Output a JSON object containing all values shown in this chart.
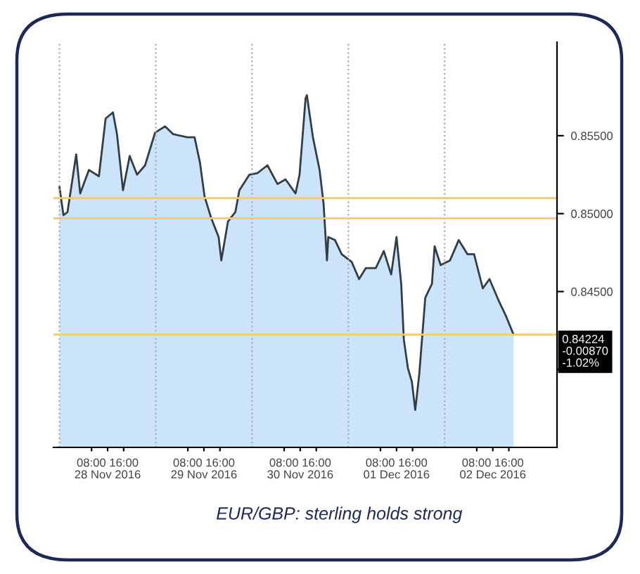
{
  "chart_data": {
    "type": "area",
    "x": [
      "2016-11-28T00:00",
      "2016-11-28T01:00",
      "2016-11-28T02:00",
      "2016-11-28T04:10",
      "2016-11-28T05:10",
      "2016-11-28T07:20",
      "2016-11-28T09:50",
      "2016-11-28T11:30",
      "2016-11-28T13:20",
      "2016-11-28T14:20",
      "2016-11-28T15:50",
      "2016-11-28T17:30",
      "2016-11-28T19:20",
      "2016-11-28T21:20",
      "2016-11-28T23:50",
      "2016-11-29T02:20",
      "2016-11-29T04:20",
      "2016-11-29T07:50",
      "2016-11-29T09:40",
      "2016-11-29T11:00",
      "2016-11-29T12:10",
      "2016-11-29T13:50",
      "2016-11-29T15:40",
      "2016-11-29T16:20",
      "2016-11-29T18:00",
      "2016-11-29T19:50",
      "2016-11-29T20:50",
      "2016-11-29T23:20",
      "2016-11-30T01:20",
      "2016-11-30T03:50",
      "2016-11-30T06:20",
      "2016-11-30T08:20",
      "2016-11-30T10:50",
      "2016-11-30T11:50",
      "2016-11-30T13:20",
      "2016-11-30T13:40",
      "2016-11-30T15:10",
      "2016-11-30T16:50",
      "2016-11-30T17:50",
      "2016-11-30T18:40",
      "2016-11-30T19:00",
      "2016-11-30T20:40",
      "2016-11-30T22:20",
      "2016-12-01T00:50",
      "2016-12-01T02:40",
      "2016-12-01T04:20",
      "2016-12-01T06:50",
      "2016-12-01T08:50",
      "2016-12-01T10:40",
      "2016-12-01T12:00",
      "2016-12-01T13:10",
      "2016-12-01T13:50",
      "2016-12-01T14:50",
      "2016-12-01T15:50",
      "2016-12-01T16:40",
      "2016-12-01T17:40",
      "2016-12-01T19:10",
      "2016-12-01T20:50",
      "2016-12-01T21:30",
      "2016-12-01T23:00",
      "2016-12-02T01:20",
      "2016-12-02T03:30",
      "2016-12-02T05:40",
      "2016-12-02T07:20",
      "2016-12-02T09:30",
      "2016-12-02T11:10",
      "2016-12-02T13:40",
      "2016-12-02T15:20",
      "2016-12-02T17:10"
    ],
    "series": [
      {
        "color": "#333d44",
        "values": [
          0.8517,
          0.8499,
          0.8501,
          0.8538,
          0.8513,
          0.8528,
          0.8524,
          0.8561,
          0.8565,
          0.8551,
          0.8515,
          0.8537,
          0.8525,
          0.8531,
          0.8552,
          0.8556,
          0.8551,
          0.8549,
          0.8549,
          0.8533,
          0.8511,
          0.8497,
          0.8485,
          0.847,
          0.8495,
          0.8501,
          0.8515,
          0.8525,
          0.8526,
          0.8531,
          0.8519,
          0.8522,
          0.8513,
          0.8525,
          0.8574,
          0.8576,
          0.8549,
          0.8528,
          0.8506,
          0.847,
          0.8485,
          0.8483,
          0.8474,
          0.8469,
          0.8458,
          0.8465,
          0.8465,
          0.8476,
          0.8461,
          0.8485,
          0.8455,
          0.8419,
          0.8401,
          0.8392,
          0.8374,
          0.8397,
          0.8446,
          0.8455,
          0.8479,
          0.8467,
          0.847,
          0.8483,
          0.8474,
          0.8474,
          0.8452,
          0.8458,
          0.8443,
          0.8434,
          0.84224
        ]
      }
    ],
    "xlim": [
      "2016-11-27T22:30",
      "2016-12-03T04:00"
    ],
    "xticks": [
      {
        "value": "2016-11-28T08:00",
        "label": null
      },
      {
        "value": "2016-11-28T16:00",
        "label": null
      },
      {
        "value": "2016-11-28T12:00",
        "label": "08:00 16:00\n28 Nov 2016"
      },
      {
        "value": "2016-11-29T08:00",
        "label": null
      },
      {
        "value": "2016-11-29T16:00",
        "label": null
      },
      {
        "value": "2016-11-29T12:00",
        "label": "08:00 16:00\n29 Nov 2016"
      },
      {
        "value": "2016-11-30T08:00",
        "label": null
      },
      {
        "value": "2016-11-30T16:00",
        "label": null
      },
      {
        "value": "2016-11-30T12:00",
        "label": "08:00 16:00\n30 Nov 2016"
      },
      {
        "value": "2016-12-01T08:00",
        "label": null
      },
      {
        "value": "2016-12-01T16:00",
        "label": null
      },
      {
        "value": "2016-12-01T12:00",
        "label": "08:00 16:00\n01 Dec 2016"
      },
      {
        "value": "2016-12-02T08:00",
        "label": null
      },
      {
        "value": "2016-12-02T16:00",
        "label": null
      },
      {
        "value": "2016-12-02T12:00",
        "label": "08:00 16:00\n02 Dec 2016"
      }
    ],
    "ylim": [
      0.835,
      0.861
    ],
    "yticks": [
      {
        "value": 0.84,
        "label": null
      },
      {
        "value": 0.845,
        "label": "0.84500"
      },
      {
        "value": 0.85,
        "label": "0.85000"
      },
      {
        "value": 0.855,
        "label": "0.85500"
      }
    ],
    "ref_lines": [
      {
        "axis": "x",
        "value": "2016-11-28T00:00",
        "color": "#aaaaaa",
        "line_style": "dotted"
      },
      {
        "axis": "x",
        "value": "2016-11-29T00:00",
        "color": "#aaaaaa",
        "line_style": "dotted"
      },
      {
        "axis": "x",
        "value": "2016-11-30T00:00",
        "color": "#aaaaaa",
        "line_style": "dotted"
      },
      {
        "axis": "x",
        "value": "2016-12-01T00:00",
        "color": "#aaaaaa",
        "line_style": "dotted"
      },
      {
        "axis": "x",
        "value": "2016-12-02T00:00",
        "color": "#aaaaaa",
        "line_style": "dotted"
      },
      {
        "axis": "y",
        "value": 0.851,
        "color": "#f3c77a",
        "line_style": "solid"
      },
      {
        "axis": "y",
        "value": 0.8497,
        "color": "#f3c77a",
        "line_style": "solid"
      },
      {
        "axis": "y",
        "value": 0.84224,
        "color": "#f0d060",
        "line_style": "solid",
        "label": "0.84224\n-0.00870\n-1.02%"
      }
    ],
    "annotations": [
      "EUR/GBP: sterling holds strong"
    ],
    "legend": false,
    "grid": false
  }
}
